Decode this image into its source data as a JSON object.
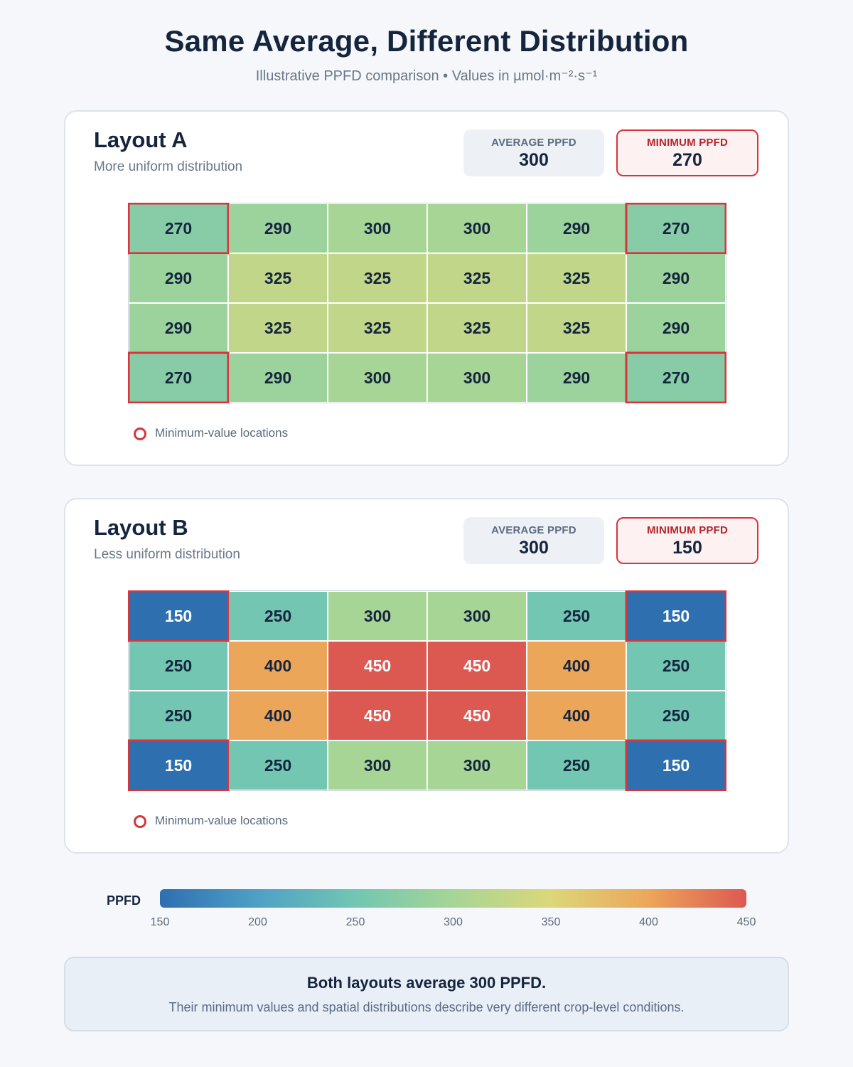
{
  "header": {
    "title": "Same Average, Different Distribution",
    "subtitle": "Illustrative PPFD comparison • Values in µmol·m⁻²·s⁻¹"
  },
  "chart_data": [
    {
      "type": "heatmap",
      "title": "Layout A",
      "subtitle": "More uniform distribution",
      "average_label": "AVERAGE PPFD",
      "average_value": "300",
      "minimum_label": "MINIMUM PPFD",
      "minimum_value": "270",
      "rows": [
        [
          270,
          290,
          300,
          300,
          290,
          270
        ],
        [
          290,
          325,
          325,
          325,
          325,
          290
        ],
        [
          290,
          325,
          325,
          325,
          325,
          290
        ],
        [
          270,
          290,
          300,
          300,
          290,
          270
        ]
      ],
      "minimum_cells": [
        [
          0,
          0
        ],
        [
          0,
          5
        ],
        [
          3,
          0
        ],
        [
          3,
          5
        ]
      ],
      "legend": "Minimum-value locations"
    },
    {
      "type": "heatmap",
      "title": "Layout B",
      "subtitle": "Less uniform distribution",
      "average_label": "AVERAGE PPFD",
      "average_value": "300",
      "minimum_label": "MINIMUM PPFD",
      "minimum_value": "150",
      "rows": [
        [
          150,
          250,
          300,
          300,
          250,
          150
        ],
        [
          250,
          400,
          450,
          450,
          400,
          250
        ],
        [
          250,
          400,
          450,
          450,
          400,
          250
        ],
        [
          150,
          250,
          300,
          300,
          250,
          150
        ]
      ],
      "minimum_cells": [
        [
          0,
          0
        ],
        [
          0,
          5
        ],
        [
          3,
          0
        ],
        [
          3,
          5
        ]
      ],
      "legend": "Minimum-value locations"
    }
  ],
  "color_scale": {
    "label": "PPFD",
    "min": 150,
    "max": 450,
    "ticks": [
      "150",
      "200",
      "250",
      "300",
      "350",
      "400",
      "450"
    ],
    "stops": [
      {
        "value": 150,
        "color": "#2e6fb0"
      },
      {
        "value": 200,
        "color": "#4fa0c6"
      },
      {
        "value": 250,
        "color": "#72c6b2"
      },
      {
        "value": 300,
        "color": "#a6d596"
      },
      {
        "value": 350,
        "color": "#dcd77a"
      },
      {
        "value": 400,
        "color": "#eca65a"
      },
      {
        "value": 450,
        "color": "#dc5951"
      }
    ]
  },
  "colors": {
    "highlight": "#d9343b",
    "dark_text": "#15253d",
    "light_text": "#ffffff"
  },
  "summary": {
    "title": "Both layouts average 300 PPFD.",
    "text": "Their minimum values and spatial distributions describe very different crop-level conditions."
  }
}
